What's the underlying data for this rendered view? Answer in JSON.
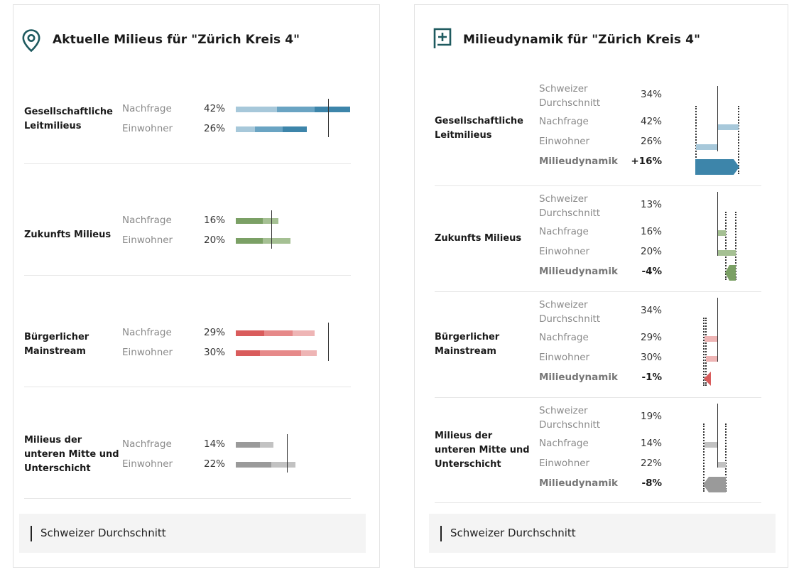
{
  "left": {
    "title": "Aktuelle Milieus für \"Zürich Kreis 4\"",
    "icon": "map-pin-icon",
    "legend": "Schweizer Durchschnitt",
    "groups": [
      {
        "name": "Gesellschaftliche Leitmilieus",
        "color": "#3d85aa",
        "colors": [
          "#a7c8da",
          "#6aa4c3",
          "#3d85aa"
        ],
        "rows": [
          {
            "label": "Nachfrage",
            "value": "42%"
          },
          {
            "label": "Einwohner",
            "value": "26%"
          }
        ],
        "avg": 0.34
      },
      {
        "name": "Zukunfts Milieus",
        "color": "#7ba065",
        "colors": [
          "#7ba065",
          "#a5c093"
        ],
        "rows": [
          {
            "label": "Nachfrage",
            "value": "16%"
          },
          {
            "label": "Einwohner",
            "value": "20%"
          }
        ],
        "avg": 0.13
      },
      {
        "name": "Bürgerlicher Mainstream",
        "color": "#d95c5c",
        "colors": [
          "#d95c5c",
          "#e68989",
          "#eeb5b5"
        ],
        "rows": [
          {
            "label": "Nachfrage",
            "value": "29%"
          },
          {
            "label": "Einwohner",
            "value": "30%"
          }
        ],
        "avg": 0.34
      },
      {
        "name": "Milieus der unteren Mitte und Unterschicht",
        "color": "#9a9a9a",
        "colors": [
          "#9a9a9a",
          "#c2c2c2"
        ],
        "rows": [
          {
            "label": "Nachfrage",
            "value": "14%"
          },
          {
            "label": "Einwohner",
            "value": "22%"
          }
        ],
        "avg": 0.19
      }
    ]
  },
  "right": {
    "title": "Milieudynamik für \"Zürich Kreis 4\"",
    "icon": "plus-square-icon",
    "legend": "Schweizer Durchschnitt",
    "groups": [
      {
        "name": "Gesellschaftliche Leitmilieus",
        "color": "#3d85aa",
        "light": "#a7c8da",
        "rows": [
          {
            "label": "Schweizer Durchschnitt",
            "value": "34%"
          },
          {
            "label": "Nachfrage",
            "value": "42%"
          },
          {
            "label": "Einwohner",
            "value": "26%"
          },
          {
            "label": "Milieudynamik",
            "value": "+16%"
          }
        ]
      },
      {
        "name": "Zukunfts Milieus",
        "color": "#7ba065",
        "light": "#a5c093",
        "rows": [
          {
            "label": "Schweizer Durchschnitt",
            "value": "13%"
          },
          {
            "label": "Nachfrage",
            "value": "16%"
          },
          {
            "label": "Einwohner",
            "value": "20%"
          },
          {
            "label": "Milieudynamik",
            "value": "-4%"
          }
        ]
      },
      {
        "name": "Bürgerlicher Mainstream",
        "color": "#d95c5c",
        "light": "#eeb5b5",
        "rows": [
          {
            "label": "Schweizer Durchschnitt",
            "value": "34%"
          },
          {
            "label": "Nachfrage",
            "value": "29%"
          },
          {
            "label": "Einwohner",
            "value": "30%"
          },
          {
            "label": "Milieudynamik",
            "value": "-1%"
          }
        ]
      },
      {
        "name": "Milieus der unteren Mitte und Unterschicht",
        "color": "#9a9a9a",
        "light": "#c2c2c2",
        "rows": [
          {
            "label": "Schweizer Durchschnitt",
            "value": "19%"
          },
          {
            "label": "Nachfrage",
            "value": "14%"
          },
          {
            "label": "Einwohner",
            "value": "22%"
          },
          {
            "label": "Milieudynamik",
            "value": "-8%"
          }
        ]
      }
    ]
  }
}
